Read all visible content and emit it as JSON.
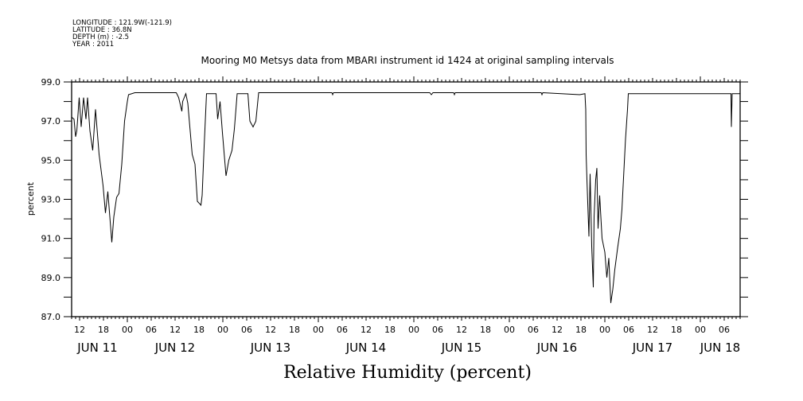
{
  "header": {
    "longitude": "LONGITUDE : 121.9W(-121.9)",
    "latitude": "LATITUDE : 36.8N",
    "depth": "DEPTH (m) : -2.5",
    "year": "YEAR : 2011"
  },
  "chart_data": {
    "type": "line",
    "title": "Mooring M0 Metsys data from MBARI instrument id 1424 at original sampling intervals",
    "xlabel": "Relative Humidity (percent)",
    "ylabel": "percent",
    "x_units": "hours since JUN 11 00:00",
    "xlim": [
      10,
      178
    ],
    "ylim": [
      87,
      99
    ],
    "y_ticks": [
      "87.0",
      "89.0",
      "91.0",
      "93.0",
      "95.0",
      "97.0",
      "99.0"
    ],
    "y_tick_values": [
      87,
      89,
      91,
      93,
      95,
      97,
      99
    ],
    "x_hour_labels": [
      "12",
      "18",
      "00",
      "06",
      "12",
      "18",
      "00",
      "06",
      "12",
      "18",
      "00",
      "06",
      "12",
      "18",
      "00",
      "06",
      "12",
      "18",
      "00",
      "06",
      "12",
      "18",
      "00",
      "06",
      "12",
      "18",
      "00",
      "06"
    ],
    "x_hour_label_start": 12,
    "day_labels": [
      "JUN 11",
      "JUN 12",
      "JUN 13",
      "JUN 14",
      "JUN 15",
      "JUN 16",
      "JUN 17",
      "JUN 18"
    ],
    "grid": false,
    "series": [
      {
        "name": "Relative Humidity",
        "color": "#000000",
        "x": [
          10,
          10.6,
          11,
          11.3,
          11.9,
          12.4,
          13,
          13.6,
          14,
          14.6,
          15.3,
          16,
          16.9,
          17.9,
          18.5,
          19.1,
          20.1,
          20.6,
          21.3,
          21.9,
          22.6,
          23.3,
          24,
          24.3,
          25.9,
          36.3,
          36.9,
          37.7,
          37.9,
          38.7,
          39.2,
          40.3,
          41,
          41.6,
          42.5,
          42.8,
          43.3,
          43.9,
          46.3,
          46.7,
          47.3,
          47.9,
          48.8,
          49.5,
          50.3,
          50.9,
          51.6,
          54.3,
          54.8,
          55.6,
          56.3,
          57,
          75.4,
          75.6,
          75.8,
          100,
          100.4,
          100.8,
          106,
          106.2,
          106.4,
          128,
          128.2,
          128.4,
          137.7,
          139,
          139.2,
          139.3,
          139.5,
          140,
          140.3,
          140.7,
          141.1,
          141.3,
          141.7,
          142,
          142.3,
          142.7,
          143.3,
          144,
          144.5,
          145,
          145.5,
          146,
          146.5,
          147.2,
          147.9,
          148.3,
          148.8,
          149.2,
          149.7,
          149.9,
          175.7,
          175.8,
          176,
          178
        ],
        "y": [
          97.2,
          97.1,
          96.2,
          96.5,
          98.2,
          96.7,
          98.2,
          97.1,
          98.2,
          96.5,
          95.5,
          97.6,
          95.3,
          93.7,
          92.3,
          93.4,
          90.8,
          92.1,
          93.1,
          93.3,
          94.8,
          97.0,
          98.0,
          98.35,
          98.45,
          98.45,
          98.2,
          97.5,
          98.0,
          98.4,
          97.9,
          95.3,
          94.8,
          92.9,
          92.7,
          93.2,
          95.7,
          98.4,
          98.4,
          97.1,
          98.0,
          96.4,
          94.2,
          95.0,
          95.5,
          96.6,
          98.4,
          98.4,
          97.0,
          96.7,
          97.0,
          98.45,
          98.45,
          98.35,
          98.45,
          98.45,
          98.35,
          98.45,
          98.45,
          98.35,
          98.45,
          98.45,
          98.35,
          98.45,
          98.35,
          98.4,
          97.6,
          95.3,
          94.0,
          91.1,
          94.3,
          90.6,
          88.5,
          92.1,
          94.0,
          94.6,
          91.5,
          93.2,
          91.0,
          90.3,
          89.0,
          90.0,
          87.7,
          88.4,
          89.4,
          90.5,
          91.5,
          92.5,
          94.5,
          96.1,
          97.6,
          98.4,
          98.4,
          96.7,
          98.4,
          98.4
        ]
      }
    ]
  }
}
